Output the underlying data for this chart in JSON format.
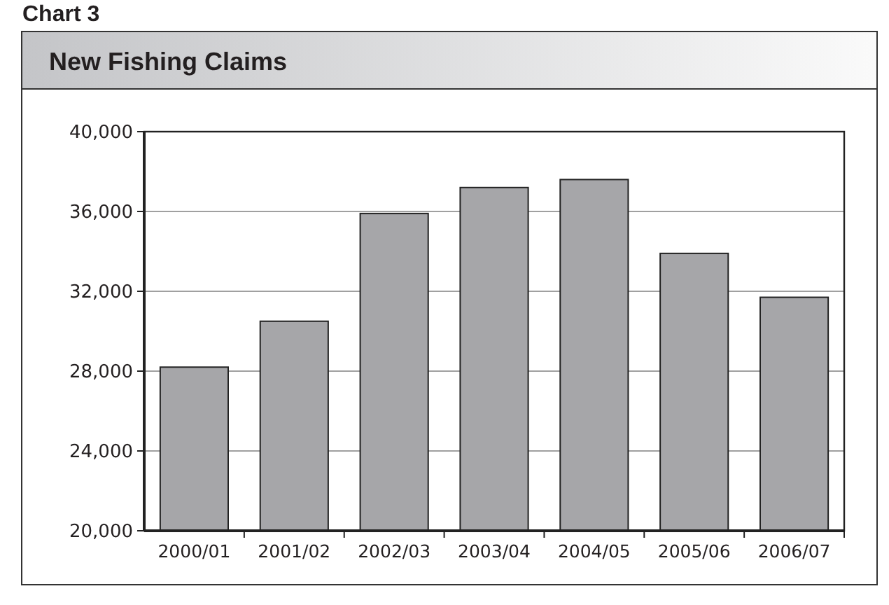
{
  "chart_data": {
    "type": "bar",
    "title": "New Fishing Claims",
    "annotations": [
      "Chart 3"
    ],
    "categories": [
      "2000/01",
      "2001/02",
      "2002/03",
      "2003/04",
      "2004/05",
      "2005/06",
      "2006/07"
    ],
    "values": [
      28200,
      30500,
      35900,
      37200,
      37600,
      33900,
      31700
    ],
    "color": "#a6a6a9",
    "ylim": [
      20000,
      40000
    ],
    "yticks": [
      {
        "value": 20000,
        "label": "20,000"
      },
      {
        "value": 24000,
        "label": "24,000"
      },
      {
        "value": 28000,
        "label": "28,000"
      },
      {
        "value": 32000,
        "label": "32,000"
      },
      {
        "value": 36000,
        "label": "36,000"
      },
      {
        "value": 40000,
        "label": "40,000"
      }
    ],
    "grid": "y"
  }
}
